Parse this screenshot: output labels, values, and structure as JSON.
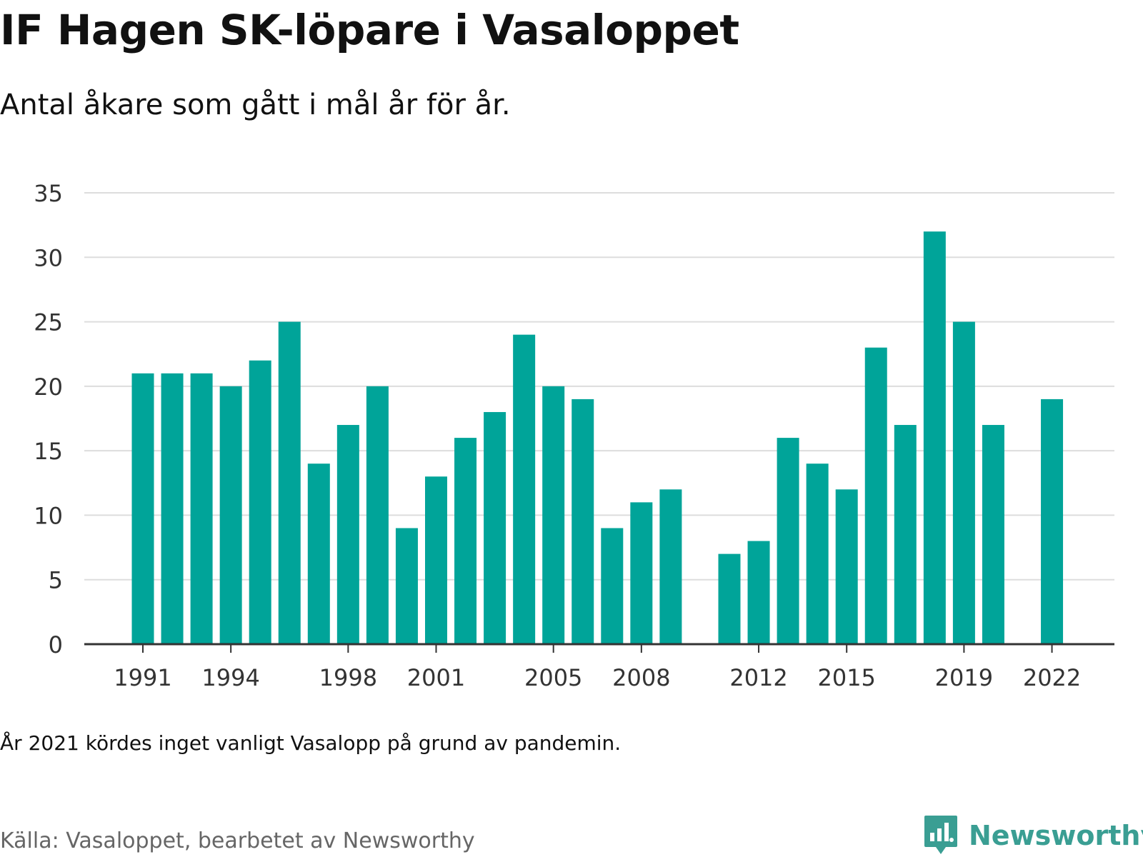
{
  "title": "IF Hagen SK-löpare i Vasaloppet",
  "subtitle": "Antal åkare som gått i mål år för år.",
  "note": "År 2021 kördes inget vanligt Vasalopp på grund av pandemin.",
  "source": "Källa: Vasaloppet, bearbetet av Newsworthy",
  "brand": {
    "name": "Newsworthy",
    "icon": "newsworthy-logo-icon"
  },
  "colors": {
    "bar": "#00a499",
    "grid": "#dddddd",
    "axis": "#333333",
    "brand": "#3a9e93"
  },
  "chart_data": {
    "type": "bar",
    "title": "IF Hagen SK-löpare i Vasaloppet",
    "subtitle": "Antal åkare som gått i mål år för år.",
    "xlabel": "",
    "ylabel": "",
    "ylim": [
      0,
      35
    ],
    "yticks": [
      0,
      5,
      10,
      15,
      20,
      25,
      30,
      35
    ],
    "xticks": [
      1991,
      1994,
      1998,
      2001,
      2005,
      2008,
      2012,
      2015,
      2019,
      2022
    ],
    "grid": true,
    "legend": "none",
    "categories": [
      1991,
      1992,
      1993,
      1994,
      1995,
      1996,
      1997,
      1998,
      1999,
      2000,
      2001,
      2002,
      2003,
      2004,
      2005,
      2006,
      2007,
      2008,
      2009,
      2010,
      2011,
      2012,
      2013,
      2014,
      2015,
      2016,
      2017,
      2018,
      2019,
      2020,
      2021,
      2022
    ],
    "values": [
      21,
      21,
      21,
      20,
      22,
      25,
      14,
      17,
      20,
      9,
      13,
      16,
      18,
      24,
      20,
      19,
      9,
      11,
      12,
      0,
      7,
      8,
      16,
      14,
      12,
      23,
      17,
      32,
      25,
      17,
      0,
      19
    ]
  }
}
